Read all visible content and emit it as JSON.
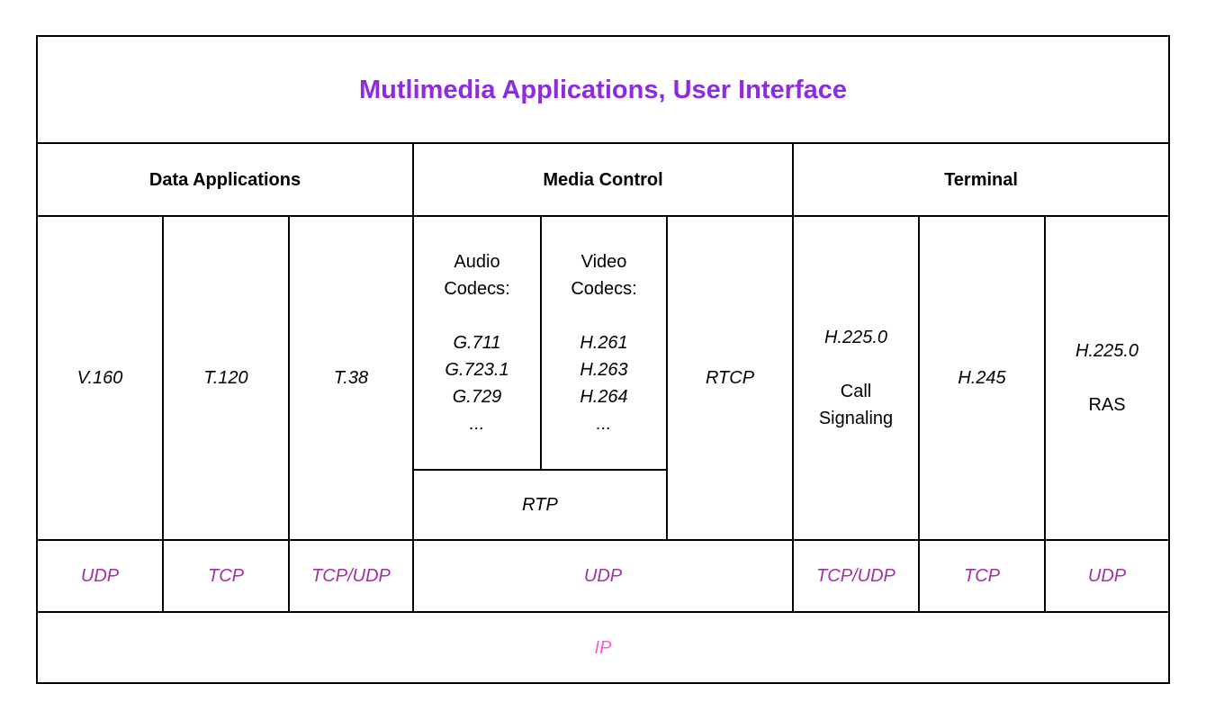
{
  "title": "Mutlimedia Applications, User Interface",
  "sections": {
    "data_applications": "Data Applications",
    "media_control": "Media Control",
    "terminal": "Terminal"
  },
  "protocols": {
    "v160": "V.160",
    "t120": "T.120",
    "t38": "T.38",
    "audio": {
      "heading1": "Audio",
      "heading2": "Codecs:",
      "items": [
        "G.711",
        "G.723.1",
        "G.729",
        "..."
      ]
    },
    "video": {
      "heading1": "Video",
      "heading2": "Codecs:",
      "items": [
        "H.261",
        "H.263",
        "H.264",
        "..."
      ]
    },
    "rtcp": "RTCP",
    "rtp": "RTP",
    "call_signaling": {
      "protocol": "H.225.0",
      "label1": "Call",
      "label2": "Signaling"
    },
    "h245": "H.245",
    "ras": {
      "protocol": "H.225.0",
      "label": "RAS"
    }
  },
  "transport": {
    "udp_data": "UDP",
    "tcp_data": "TCP",
    "tcpudp_data": "TCP/UDP",
    "udp_media": "UDP",
    "tcpudp_terminal": "TCP/UDP",
    "tcp_terminal": "TCP",
    "udp_terminal": "UDP"
  },
  "network": {
    "ip": "IP"
  },
  "colors": {
    "title": "#8d2be0",
    "transport": "#a52da5",
    "ip": "#ff5ad6",
    "border": "#000000",
    "body_text": "#000000",
    "background": "#ffffff"
  }
}
